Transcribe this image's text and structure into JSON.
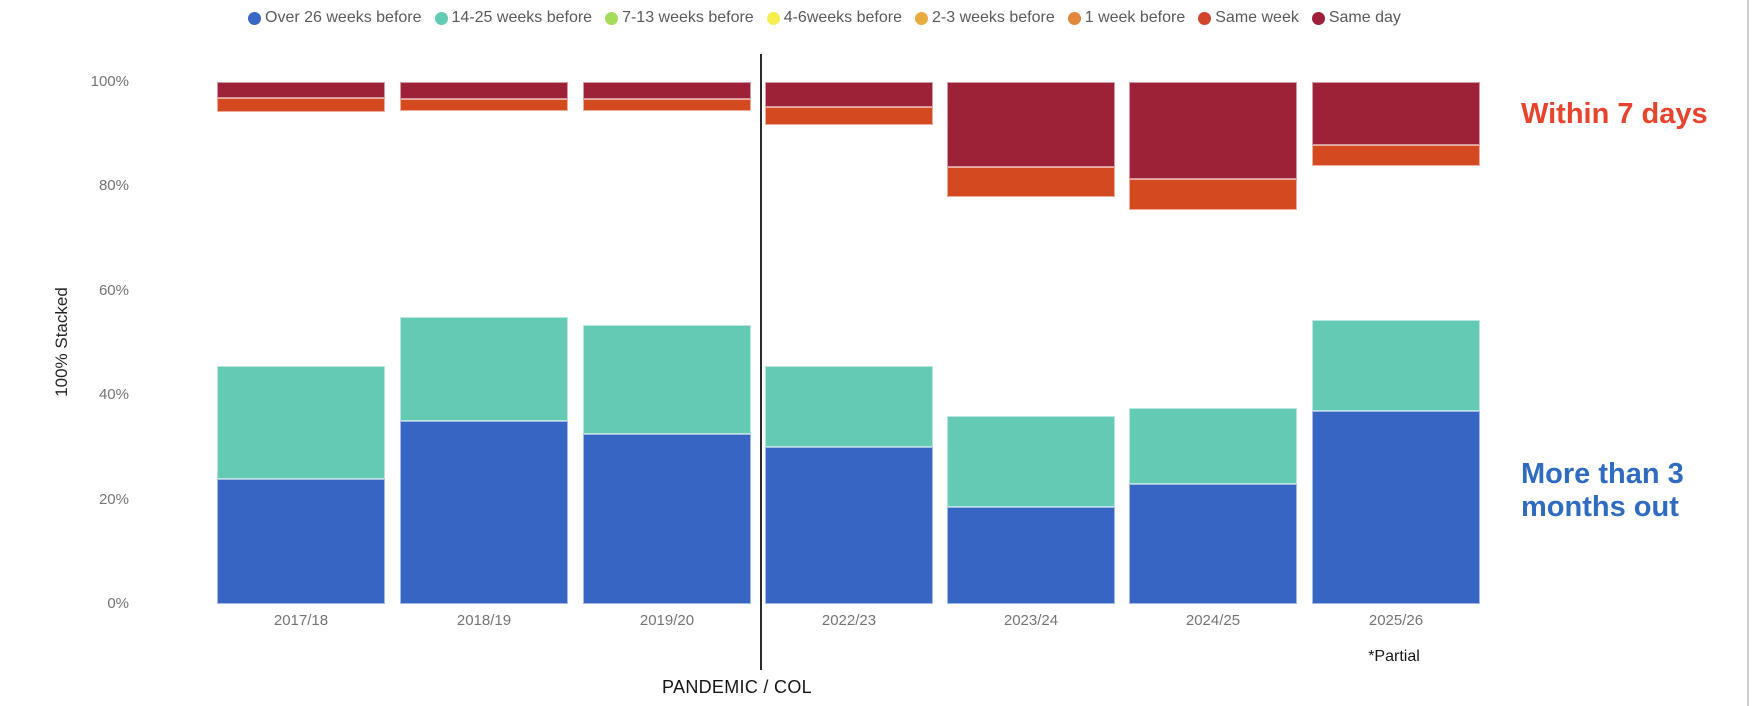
{
  "legend": {
    "items": [
      {
        "label": "Over 26 weeks before",
        "color": "#3B66C4"
      },
      {
        "label": "14-25 weeks before",
        "color": "#63CBB4"
      },
      {
        "label": "7-13 weeks before",
        "color": "#A5DC5C"
      },
      {
        "label": "4-6weeks before",
        "color": "#F4EF4F"
      },
      {
        "label": "2-3 weeks before",
        "color": "#E9AC40"
      },
      {
        "label": "1 week before",
        "color": "#E2873C"
      },
      {
        "label": "Same week",
        "color": "#D1452B"
      },
      {
        "label": "Same day",
        "color": "#9E2139"
      }
    ]
  },
  "axis": {
    "y_title": "100% Stacked",
    "y_ticks": [
      {
        "label": "100%",
        "value": 100
      },
      {
        "label": "80%",
        "value": 80
      },
      {
        "label": "60%",
        "value": 60
      },
      {
        "label": "40%",
        "value": 40
      },
      {
        "label": "20%",
        "value": 20
      },
      {
        "label": "0%",
        "value": 0
      }
    ],
    "x_title": "PANDEMIC / COL"
  },
  "annotations": {
    "within_7_days": "Within 7 days",
    "within_color": "#E8432C",
    "more_than_line1": "More than 3",
    "more_than_line2": "months out",
    "more_color": "#2F6BBF",
    "partial": "*Partial"
  },
  "chart_data": {
    "type": "bar",
    "subtype": "100-percent-stacked-column",
    "title": "",
    "xlabel": "PANDEMIC / COL",
    "ylabel": "100% Stacked",
    "ylim": [
      0,
      100
    ],
    "grid": false,
    "legend_position": "top",
    "categories": [
      "2017/18",
      "2018/19",
      "2019/20",
      "2022/23",
      "2023/24",
      "2024/25",
      "2025/26"
    ],
    "divider_between": [
      "2019/20",
      "2022/23"
    ],
    "series": [
      {
        "name": "Over 26 weeks before",
        "color": "#3765C4",
        "values": [
          24,
          35,
          32.5,
          30,
          18.5,
          23,
          37
        ]
      },
      {
        "name": "14-25 weeks before",
        "color": "#63CBB4",
        "values": [
          21.5,
          20,
          21,
          15.5,
          17.5,
          14.5,
          17.5
        ]
      },
      {
        "name": "7-13 weeks before",
        "color": "#A5DC5C",
        "values": null,
        "rendered": "white (not visible in plot)"
      },
      {
        "name": "4-6weeks before",
        "color": "#F4EF4F",
        "values": null,
        "rendered": "white (not visible in plot)"
      },
      {
        "name": "2-3 weeks before",
        "color": "#E9AC40",
        "values": null,
        "rendered": "white (not visible in plot)"
      },
      {
        "name": "1 week before",
        "color": "#E2873C",
        "values": null,
        "rendered": "white (not visible in plot)"
      },
      {
        "name": "Same week",
        "color": "#D4491F",
        "values": [
          2.6,
          2.2,
          2.3,
          3.5,
          5.7,
          5.9,
          4.1
        ]
      },
      {
        "name": "Same day",
        "color": "#9D2237",
        "values": [
          3.1,
          3.3,
          3.3,
          4.7,
          16.3,
          18.6,
          12
        ]
      }
    ]
  }
}
